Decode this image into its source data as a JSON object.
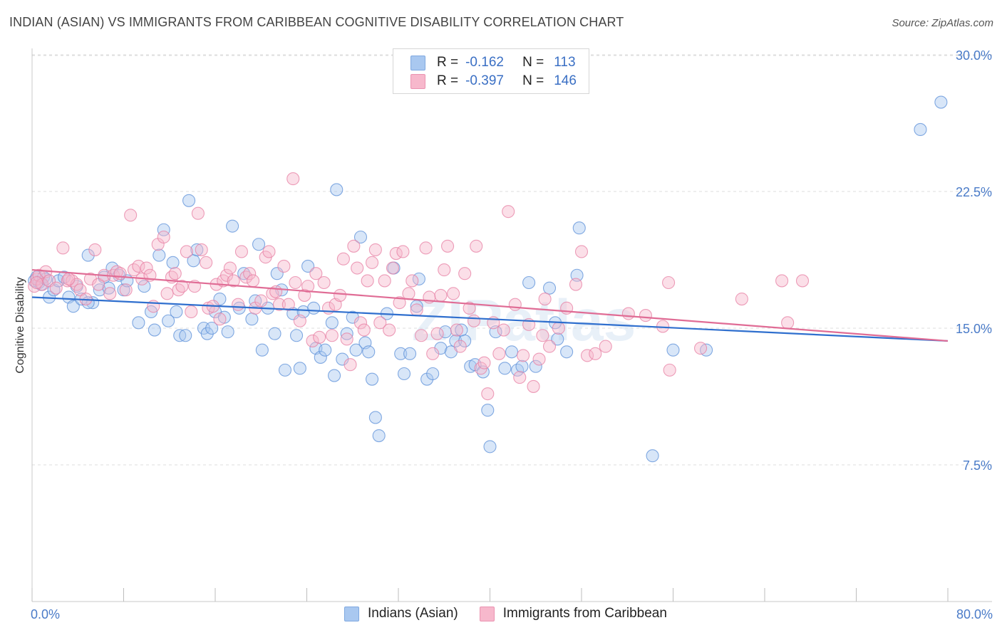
{
  "header": {
    "title": "INDIAN (ASIAN) VS IMMIGRANTS FROM CARIBBEAN COGNITIVE DISABILITY CORRELATION CHART",
    "source": "Source: ZipAtlas.com"
  },
  "legend": {
    "rows": [
      {
        "r_label": "R =",
        "r_value": "-0.162",
        "n_label": "N =",
        "n_value": "113",
        "color": "#a9c8f0"
      },
      {
        "r_label": "R =",
        "r_value": "-0.397",
        "n_label": "N =",
        "n_value": "146",
        "color": "#f7b8cc"
      }
    ]
  },
  "bottom_legend": {
    "items": [
      {
        "label": "Indians (Asian)",
        "color": "#a9c8f0"
      },
      {
        "label": "Immigrants from Caribbean",
        "color": "#f7b8cc"
      }
    ]
  },
  "watermark": "ZIPatlas",
  "chart_data": {
    "type": "scatter",
    "title": "INDIAN (ASIAN) VS IMMIGRANTS FROM CARIBBEAN COGNITIVE DISABILITY CORRELATION CHART",
    "ylabel": "Cognitive Disability",
    "xlabel": "",
    "xlim": [
      0,
      80
    ],
    "ylim": [
      0,
      31
    ],
    "x_tick_labels": [
      "0.0%",
      "80.0%"
    ],
    "y_ticks": [
      7.5,
      15.0,
      22.5,
      30.0
    ],
    "y_tick_labels": [
      "7.5%",
      "15.0%",
      "22.5%",
      "30.0%"
    ],
    "grid": true,
    "legend_position": "top-center",
    "series": [
      {
        "name": "Indians (Asian)",
        "color": "#5b8fd8",
        "fill": "#a9c8f0",
        "line_color": "#2f6fce",
        "trend": {
          "x": [
            0,
            80
          ],
          "y": [
            16.7,
            14.3
          ]
        },
        "points": [
          [
            0.2,
            17.6
          ],
          [
            0.4,
            17.8
          ],
          [
            0.6,
            17.5
          ],
          [
            0.8,
            17.4
          ],
          [
            1.0,
            17.8
          ],
          [
            1.2,
            17.7
          ],
          [
            1.5,
            16.7
          ],
          [
            1.9,
            17.1
          ],
          [
            2.3,
            17.6
          ],
          [
            2.8,
            17.8
          ],
          [
            3.2,
            16.7
          ],
          [
            3.6,
            16.2
          ],
          [
            3.9,
            17.3
          ],
          [
            4.3,
            16.6
          ],
          [
            4.9,
            19.0
          ],
          [
            5.3,
            16.4
          ],
          [
            5.9,
            17.1
          ],
          [
            6.3,
            17.8
          ],
          [
            6.7,
            17.2
          ],
          [
            7.0,
            18.3
          ],
          [
            7.6,
            17.9
          ],
          [
            8.0,
            17.1
          ],
          [
            8.3,
            17.6
          ],
          [
            9.3,
            15.3
          ],
          [
            9.8,
            17.3
          ],
          [
            10.4,
            15.9
          ],
          [
            10.7,
            14.9
          ],
          [
            11.1,
            19.0
          ],
          [
            11.5,
            20.4
          ],
          [
            11.9,
            15.4
          ],
          [
            12.3,
            18.6
          ],
          [
            12.6,
            15.9
          ],
          [
            12.9,
            14.6
          ],
          [
            13.4,
            14.6
          ],
          [
            13.7,
            22.0
          ],
          [
            14.1,
            18.7
          ],
          [
            14.4,
            19.3
          ],
          [
            15.0,
            15.0
          ],
          [
            15.3,
            14.7
          ],
          [
            15.7,
            15.0
          ],
          [
            16.0,
            15.9
          ],
          [
            16.4,
            16.6
          ],
          [
            16.8,
            15.6
          ],
          [
            17.1,
            14.8
          ],
          [
            17.5,
            20.6
          ],
          [
            18.1,
            16.1
          ],
          [
            18.5,
            18.0
          ],
          [
            19.2,
            15.5
          ],
          [
            19.5,
            16.5
          ],
          [
            19.8,
            19.6
          ],
          [
            20.1,
            13.8
          ],
          [
            20.6,
            16.1
          ],
          [
            21.2,
            14.7
          ],
          [
            21.4,
            18.0
          ],
          [
            21.8,
            17.1
          ],
          [
            22.1,
            12.7
          ],
          [
            22.8,
            15.8
          ],
          [
            23.1,
            14.6
          ],
          [
            23.4,
            12.8
          ],
          [
            23.7,
            15.9
          ],
          [
            24.1,
            18.4
          ],
          [
            24.6,
            16.1
          ],
          [
            24.8,
            13.9
          ],
          [
            25.2,
            13.4
          ],
          [
            25.6,
            13.8
          ],
          [
            26.2,
            15.3
          ],
          [
            26.4,
            12.4
          ],
          [
            26.6,
            22.6
          ],
          [
            27.1,
            13.3
          ],
          [
            27.5,
            14.7
          ],
          [
            28.0,
            15.6
          ],
          [
            28.3,
            13.8
          ],
          [
            28.7,
            20.0
          ],
          [
            29.1,
            14.2
          ],
          [
            29.4,
            13.7
          ],
          [
            29.7,
            12.2
          ],
          [
            30.0,
            10.1
          ],
          [
            30.3,
            9.1
          ],
          [
            31.0,
            15.8
          ],
          [
            31.6,
            18.3
          ],
          [
            32.2,
            13.6
          ],
          [
            32.5,
            12.5
          ],
          [
            33.0,
            13.6
          ],
          [
            33.6,
            16.2
          ],
          [
            33.8,
            17.7
          ],
          [
            34.5,
            12.2
          ],
          [
            35.0,
            12.5
          ],
          [
            35.7,
            13.9
          ],
          [
            36.1,
            14.8
          ],
          [
            36.6,
            13.7
          ],
          [
            37.0,
            14.3
          ],
          [
            37.5,
            14.9
          ],
          [
            37.8,
            14.3
          ],
          [
            38.3,
            12.9
          ],
          [
            38.7,
            13.0
          ],
          [
            39.4,
            12.6
          ],
          [
            39.8,
            10.5
          ],
          [
            40.0,
            8.5
          ],
          [
            40.5,
            14.8
          ],
          [
            41.3,
            12.8
          ],
          [
            41.9,
            13.7
          ],
          [
            42.4,
            12.7
          ],
          [
            42.8,
            12.9
          ],
          [
            43.4,
            17.5
          ],
          [
            44.0,
            12.9
          ],
          [
            45.2,
            17.2
          ],
          [
            45.7,
            15.3
          ],
          [
            45.9,
            14.4
          ],
          [
            46.7,
            13.7
          ],
          [
            47.6,
            17.9
          ],
          [
            47.8,
            20.5
          ],
          [
            54.2,
            8.0
          ],
          [
            56.0,
            13.8
          ],
          [
            58.9,
            13.8
          ],
          [
            77.6,
            25.9
          ],
          [
            79.4,
            27.4
          ],
          [
            4.9,
            16.4
          ]
        ]
      },
      {
        "name": "Immigrants from Caribbean",
        "color": "#e77fa3",
        "fill": "#f7b8cc",
        "line_color": "#e06c95",
        "trend": {
          "x": [
            0,
            80
          ],
          "y": [
            18.2,
            14.3
          ]
        },
        "points": [
          [
            0.2,
            17.3
          ],
          [
            0.4,
            17.7
          ],
          [
            0.6,
            17.9
          ],
          [
            0.9,
            17.4
          ],
          [
            1.2,
            18.1
          ],
          [
            1.5,
            17.6
          ],
          [
            2.1,
            17.2
          ],
          [
            2.7,
            19.4
          ],
          [
            3.1,
            17.6
          ],
          [
            3.5,
            17.6
          ],
          [
            3.9,
            17.4
          ],
          [
            4.2,
            17.1
          ],
          [
            4.7,
            16.6
          ],
          [
            5.1,
            17.7
          ],
          [
            5.5,
            19.3
          ],
          [
            5.8,
            17.4
          ],
          [
            6.3,
            17.9
          ],
          [
            6.8,
            16.9
          ],
          [
            7.1,
            17.9
          ],
          [
            7.4,
            18.1
          ],
          [
            7.7,
            18.0
          ],
          [
            8.2,
            17.1
          ],
          [
            8.6,
            21.2
          ],
          [
            8.9,
            18.2
          ],
          [
            9.3,
            18.4
          ],
          [
            9.6,
            17.7
          ],
          [
            10.0,
            18.3
          ],
          [
            10.3,
            17.9
          ],
          [
            10.6,
            16.2
          ],
          [
            11.0,
            19.6
          ],
          [
            11.5,
            20.0
          ],
          [
            11.8,
            16.9
          ],
          [
            12.2,
            17.8
          ],
          [
            12.5,
            18.0
          ],
          [
            12.8,
            17.1
          ],
          [
            13.1,
            17.3
          ],
          [
            13.5,
            19.2
          ],
          [
            13.9,
            15.9
          ],
          [
            14.2,
            17.3
          ],
          [
            14.5,
            21.3
          ],
          [
            14.8,
            19.3
          ],
          [
            15.2,
            18.6
          ],
          [
            15.4,
            16.1
          ],
          [
            15.8,
            16.2
          ],
          [
            16.1,
            17.4
          ],
          [
            16.4,
            15.5
          ],
          [
            16.7,
            17.6
          ],
          [
            17.0,
            17.9
          ],
          [
            17.3,
            18.3
          ],
          [
            17.6,
            17.6
          ],
          [
            18.0,
            16.3
          ],
          [
            18.3,
            19.2
          ],
          [
            18.7,
            17.8
          ],
          [
            19.0,
            18.0
          ],
          [
            19.3,
            17.6
          ],
          [
            19.5,
            16.1
          ],
          [
            20.0,
            16.5
          ],
          [
            20.4,
            18.9
          ],
          [
            20.7,
            19.2
          ],
          [
            21.0,
            16.9
          ],
          [
            21.3,
            17.0
          ],
          [
            21.6,
            16.3
          ],
          [
            22.0,
            18.4
          ],
          [
            22.4,
            16.3
          ],
          [
            22.8,
            23.2
          ],
          [
            23.0,
            17.5
          ],
          [
            23.4,
            15.4
          ],
          [
            23.8,
            16.8
          ],
          [
            24.1,
            17.3
          ],
          [
            24.5,
            14.3
          ],
          [
            24.8,
            18.0
          ],
          [
            25.1,
            14.5
          ],
          [
            25.5,
            17.5
          ],
          [
            25.9,
            16.1
          ],
          [
            26.2,
            14.6
          ],
          [
            26.5,
            16.3
          ],
          [
            26.9,
            16.8
          ],
          [
            27.2,
            18.8
          ],
          [
            27.5,
            14.4
          ],
          [
            27.8,
            13.0
          ],
          [
            28.1,
            19.5
          ],
          [
            28.4,
            18.3
          ],
          [
            28.7,
            15.3
          ],
          [
            29.0,
            14.9
          ],
          [
            29.3,
            17.6
          ],
          [
            29.7,
            18.6
          ],
          [
            30.0,
            19.3
          ],
          [
            30.4,
            15.3
          ],
          [
            30.8,
            17.6
          ],
          [
            31.2,
            14.9
          ],
          [
            31.5,
            18.3
          ],
          [
            31.8,
            19.1
          ],
          [
            32.1,
            16.4
          ],
          [
            32.4,
            19.2
          ],
          [
            32.9,
            16.9
          ],
          [
            33.2,
            17.6
          ],
          [
            33.6,
            16.0
          ],
          [
            34.0,
            14.6
          ],
          [
            34.4,
            19.4
          ],
          [
            34.7,
            16.7
          ],
          [
            35.0,
            13.6
          ],
          [
            35.4,
            14.7
          ],
          [
            35.7,
            16.8
          ],
          [
            36.0,
            18.2
          ],
          [
            36.3,
            19.5
          ],
          [
            36.8,
            16.9
          ],
          [
            37.1,
            14.9
          ],
          [
            37.4,
            14.0
          ],
          [
            37.8,
            18.0
          ],
          [
            38.2,
            16.1
          ],
          [
            38.6,
            15.4
          ],
          [
            38.8,
            19.5
          ],
          [
            39.2,
            12.8
          ],
          [
            39.5,
            13.1
          ],
          [
            39.8,
            11.4
          ],
          [
            40.3,
            15.3
          ],
          [
            40.8,
            13.6
          ],
          [
            41.2,
            14.9
          ],
          [
            41.6,
            21.4
          ],
          [
            42.2,
            16.3
          ],
          [
            42.6,
            12.3
          ],
          [
            42.9,
            13.5
          ],
          [
            43.4,
            15.2
          ],
          [
            43.8,
            11.8
          ],
          [
            44.3,
            13.3
          ],
          [
            44.6,
            14.6
          ],
          [
            44.8,
            16.6
          ],
          [
            45.2,
            14.0
          ],
          [
            46.0,
            15.0
          ],
          [
            46.7,
            16.1
          ],
          [
            47.5,
            17.4
          ],
          [
            48.0,
            19.2
          ],
          [
            48.5,
            13.5
          ],
          [
            49.2,
            13.6
          ],
          [
            50.1,
            14.0
          ],
          [
            52.1,
            15.8
          ],
          [
            53.6,
            15.7
          ],
          [
            55.1,
            15.1
          ],
          [
            55.6,
            17.5
          ],
          [
            55.7,
            12.7
          ],
          [
            58.4,
            13.9
          ],
          [
            62.0,
            16.6
          ],
          [
            65.5,
            17.6
          ],
          [
            66.0,
            15.3
          ],
          [
            67.3,
            17.6
          ],
          [
            0.4,
            17.5
          ],
          [
            3.2,
            17.7
          ]
        ]
      }
    ]
  }
}
